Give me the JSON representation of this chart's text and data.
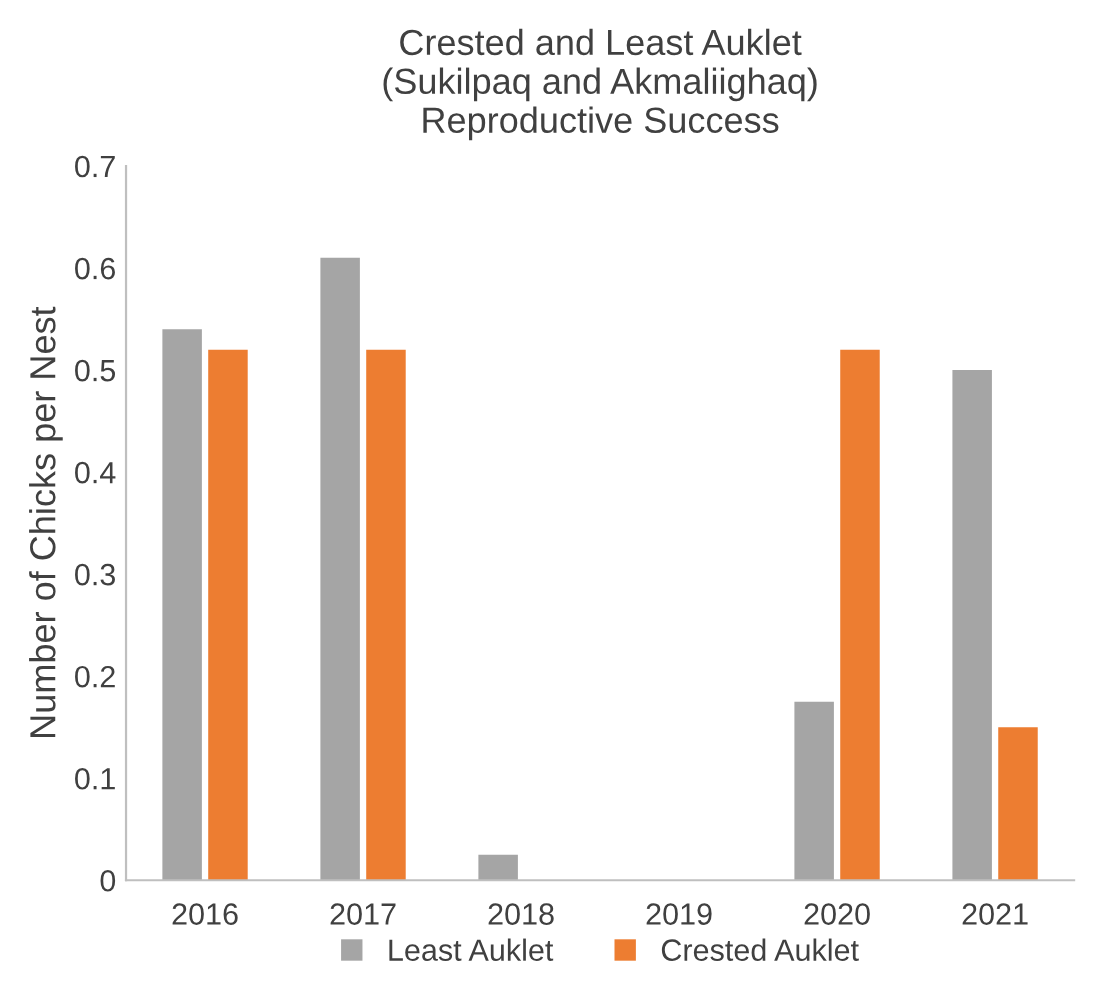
{
  "chart_data": {
    "type": "bar",
    "title": "Crested and Least Auklet\n(Sukilpaq and Akmaliighaq)\nReproductive Success",
    "ylabel": "Number of Chicks per Nest",
    "categories": [
      "2016",
      "2017",
      "2018",
      "2019",
      "2020",
      "2021"
    ],
    "series": [
      {
        "name": "Least Auklet",
        "color": "#a5a5a5",
        "values": [
          0.54,
          0.61,
          0.025,
          0,
          0.175,
          0.5
        ]
      },
      {
        "name": "Crested Auklet",
        "color": "#ed7d31",
        "values": [
          0.52,
          0.52,
          0,
          0,
          0.52,
          0.15
        ]
      }
    ],
    "ylim": [
      0,
      0.7
    ],
    "yticks": [
      0,
      0.1,
      0.2,
      0.3,
      0.4,
      0.5,
      0.6,
      0.7
    ],
    "grid": false,
    "legend": "bottom"
  }
}
